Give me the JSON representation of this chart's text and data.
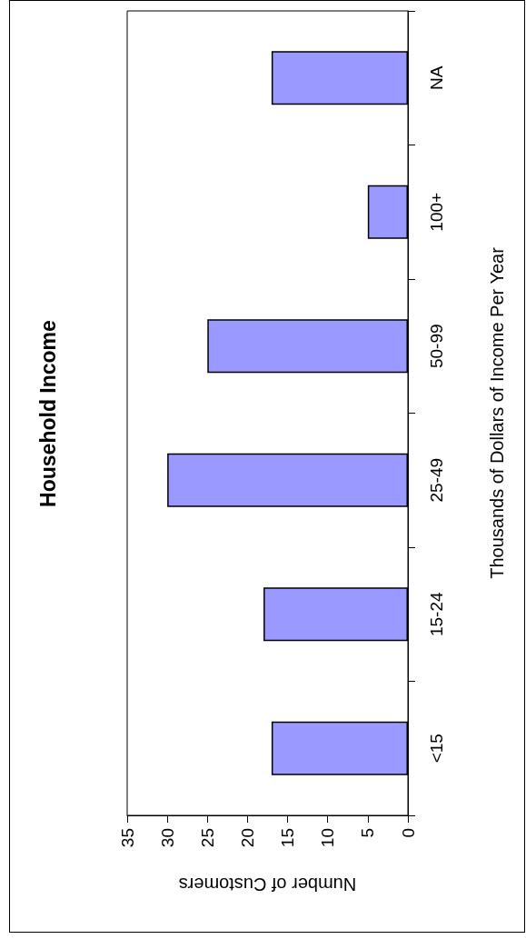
{
  "chart_data": {
    "type": "bar",
    "orientation": "horizontal",
    "title": "Household Income",
    "xlabel": "Number of Customers",
    "ylabel": "Thousands of Dollars of Income Per Year",
    "categories": [
      "NA",
      "100+",
      "50-99",
      "25-49",
      "15-24",
      "<15"
    ],
    "values": [
      17,
      5,
      25,
      30,
      18,
      17
    ],
    "color": "#9999ff",
    "xlim": [
      35,
      0
    ],
    "xticks": [
      35,
      30,
      25,
      20,
      15,
      10,
      5,
      0
    ],
    "grid": false
  }
}
